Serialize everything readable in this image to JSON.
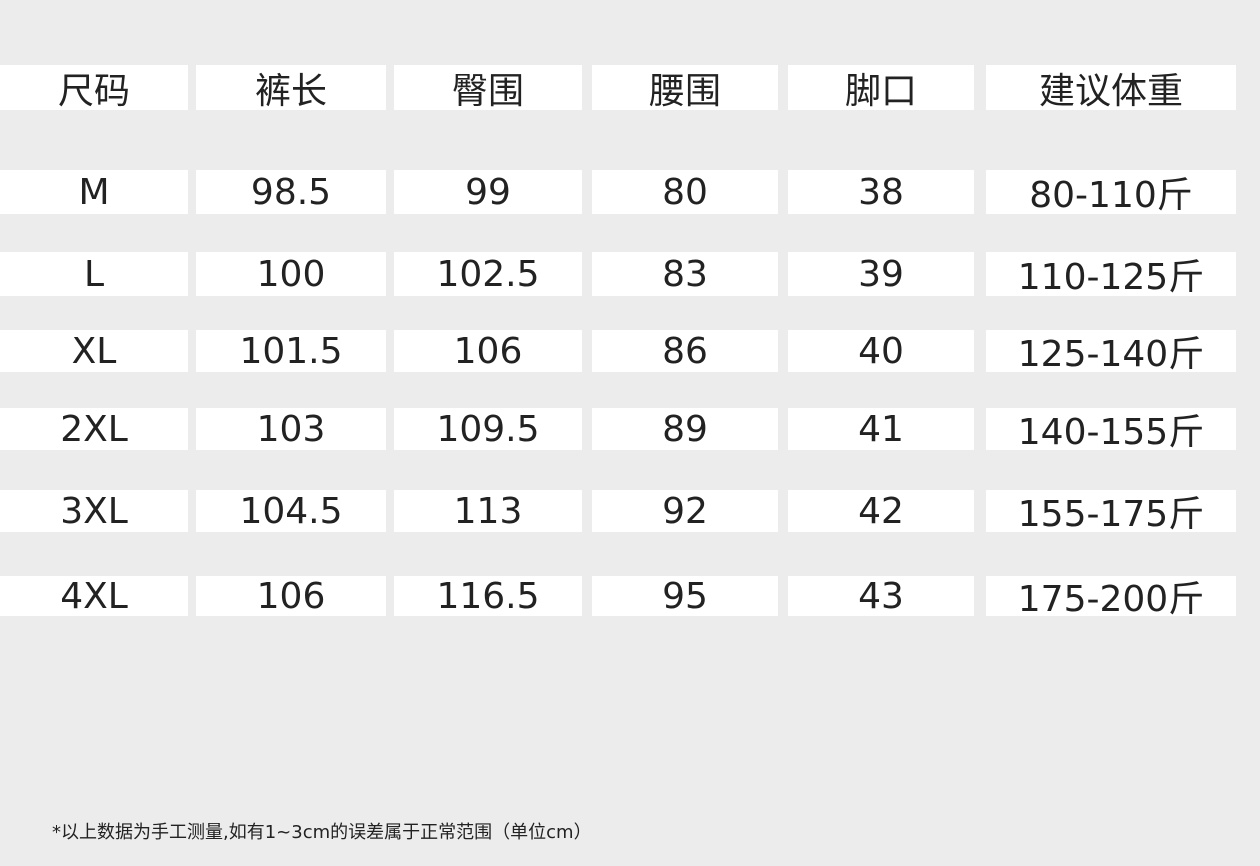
{
  "table": {
    "header": [
      "尺码",
      "裤长",
      "臀围",
      "腰围",
      "脚口",
      "建议体重"
    ],
    "rows": [
      [
        "M",
        "98.5",
        "99",
        "80",
        "38",
        "80-110斤"
      ],
      [
        "L",
        "100",
        "102.5",
        "83",
        "39",
        "110-125斤"
      ],
      [
        "XL",
        "101.5",
        "106",
        "86",
        "40",
        "125-140斤"
      ],
      [
        "2XL",
        "103",
        "109.5",
        "89",
        "41",
        "140-155斤"
      ],
      [
        "3XL",
        "104.5",
        "113",
        "92",
        "42",
        "155-175斤"
      ],
      [
        "4XL",
        "106",
        "116.5",
        "95",
        "43",
        "175-200斤"
      ]
    ]
  },
  "footnote": "*以上数据为手工测量,如有1~3cm的误差属于正常范围（单位cm）"
}
